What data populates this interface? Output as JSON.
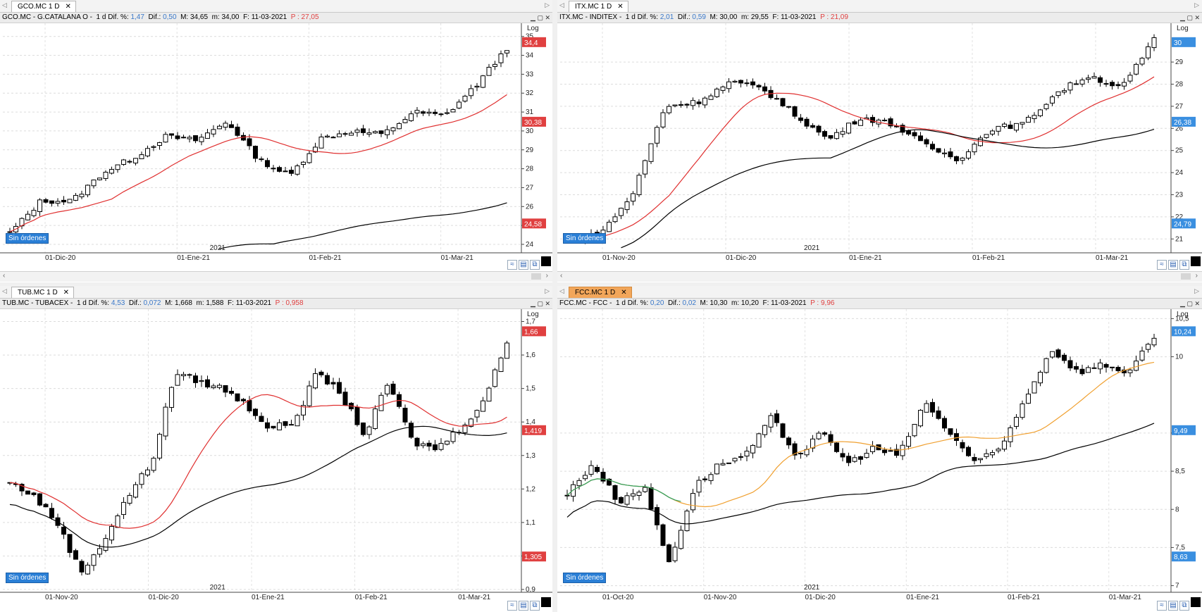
{
  "panels": [
    {
      "id": "gco",
      "tab": "GCO.MC 1 D",
      "active": false,
      "header": {
        "ticker": "GCO.MC - G.CATALANA O -",
        "tf": "1 d",
        "dif_pct_label": "Dif. %:",
        "dif_pct": "1,47",
        "dif_label": "Dif.:",
        "dif": "0,50",
        "max": "M: 34,65",
        "min": "m: 34,00",
        "date": "F: 11-03-2021",
        "p": "P : 27,05"
      },
      "badge": "Sin órdenes",
      "log": "Log",
      "year_label": "2021",
      "chart_data": {
        "type": "candlestick",
        "x_ticks": [
          "01-Dic-20",
          "01-Ene-21",
          "01-Feb-21",
          "01-Mar-21"
        ],
        "y_ticks": [
          "24",
          "25",
          "26",
          "27",
          "28",
          "29",
          "30",
          "31",
          "32",
          "33",
          "34",
          "35"
        ],
        "ylim": [
          23.7,
          35.4
        ],
        "price_labels": [
          {
            "value": "34,4",
            "color": "#e04040"
          },
          {
            "value": "30,38",
            "color": "#e04040"
          },
          {
            "value": "24,58",
            "color": "#e04040"
          }
        ],
        "series": [
          {
            "color": "#e03030",
            "start": 23.3,
            "mid": 28.9,
            "end": 30.38
          },
          {
            "color": "#000000",
            "start": null,
            "mid": null,
            "end": 24.58
          }
        ],
        "trend_path": [
          24.6,
          26.3,
          26.3,
          27.8,
          28.6,
          29.7,
          29.5,
          30.5,
          28.5,
          27.6,
          29.6,
          30.0,
          29.8,
          31.0,
          30.8,
          32.4,
          34.4
        ]
      }
    },
    {
      "id": "itx",
      "tab": "ITX.MC 1 D",
      "active": false,
      "header": {
        "ticker": "ITX.MC - INDITEX -",
        "tf": "1 d",
        "dif_pct_label": "Dif. %:",
        "dif_pct": "2,01",
        "dif_label": "Dif.:",
        "dif": "0,59",
        "max": "M: 30,00",
        "min": "m: 29,55",
        "date": "F: 11-03-2021",
        "p": "P : 21,09"
      },
      "badge": "Sin órdenes",
      "log": "Log",
      "year_label": "2021",
      "chart_data": {
        "type": "candlestick",
        "x_ticks": [
          "01-Nov-20",
          "01-Dic-20",
          "01-Ene-21",
          "01-Feb-21",
          "01-Mar-21"
        ],
        "y_ticks": [
          "21",
          "22",
          "23",
          "24",
          "25",
          "26",
          "27",
          "28",
          "29"
        ],
        "ylim": [
          20.5,
          30.5
        ],
        "price_labels": [
          {
            "value": "30",
            "color": "#3a8fe0"
          },
          {
            "value": "26,38",
            "color": "#3a8fe0"
          },
          {
            "value": "24,79",
            "color": "#3a8fe0"
          }
        ],
        "series": [
          {
            "color": "#e03030"
          },
          {
            "color": "#000000"
          }
        ],
        "trend_path": [
          21.0,
          21.2,
          23.0,
          27.0,
          27.2,
          28.1,
          27.8,
          26.6,
          25.5,
          26.5,
          26.2,
          25.2,
          24.6,
          26.0,
          26.2,
          27.6,
          28.4,
          27.8,
          30.0
        ]
      }
    },
    {
      "id": "tub",
      "tab": "TUB.MC 1 D",
      "active": false,
      "header": {
        "ticker": "TUB.MC - TUBACEX -",
        "tf": "1 d",
        "dif_pct_label": "Dif. %:",
        "dif_pct": "4,53",
        "dif_label": "Dif.:",
        "dif": "0,072",
        "max": "M: 1,668",
        "min": "m: 1,588",
        "date": "F: 11-03-2021",
        "p": "P : 0,958"
      },
      "badge": "Sin órdenes",
      "log": "Log",
      "year_label": "2021",
      "chart_data": {
        "type": "candlestick",
        "x_ticks": [
          "01-Nov-20",
          "01-Dic-20",
          "01-Ene-21",
          "01-Feb-21",
          "01-Mar-21"
        ],
        "y_ticks": [
          "0,9",
          "1",
          "1,1",
          "1,2",
          "1,3",
          "1,4",
          "1,5",
          "1,6",
          "1,7"
        ],
        "ylim": [
          0.9,
          1.72
        ],
        "price_labels": [
          {
            "value": "1,66",
            "color": "#e04040"
          },
          {
            "value": "1,419",
            "color": "#e04040"
          },
          {
            "value": "1,305",
            "color": "#e04040"
          }
        ],
        "series": [
          {
            "color": "#e03030"
          },
          {
            "color": "#000000"
          }
        ],
        "trend_path": [
          1.22,
          1.18,
          1.1,
          0.95,
          1.05,
          1.18,
          1.28,
          1.55,
          1.52,
          1.5,
          1.45,
          1.38,
          1.4,
          1.55,
          1.48,
          1.36,
          1.52,
          1.34,
          1.32,
          1.38,
          1.46,
          1.64
        ]
      }
    },
    {
      "id": "fcc",
      "tab": "FCC.MC 1 D",
      "active": true,
      "header": {
        "ticker": "FCC.MC - FCC -",
        "tf": "1 d",
        "dif_pct_label": "Dif. %:",
        "dif_pct": "0,20",
        "dif_label": "Dif.:",
        "dif": "0,02",
        "max": "M: 10,30",
        "min": "m: 10,20",
        "date": "F: 11-03-2021",
        "p": "P : 9,96"
      },
      "badge": "Sin órdenes",
      "log": "Log",
      "year_label": "2021",
      "chart_data": {
        "type": "candlestick",
        "x_ticks": [
          "01-Oct-20",
          "01-Nov-20",
          "01-Dic-20",
          "01-Ene-21",
          "01-Feb-21",
          "01-Mar-21"
        ],
        "y_ticks": [
          "7",
          "7,5",
          "8",
          "8,5",
          "9",
          "10",
          "10,5"
        ],
        "ylim": [
          6.95,
          10.55
        ],
        "price_labels": [
          {
            "value": "10,24",
            "color": "#3a8fe0"
          },
          {
            "value": "9,49",
            "color": "#3a8fe0"
          },
          {
            "value": "8,63",
            "color": "#3a8fe0"
          }
        ],
        "series": [
          {
            "color": "#f0a030"
          },
          {
            "color": "#000000"
          },
          {
            "color": "#30a060"
          }
        ],
        "trend_path": [
          8.2,
          8.6,
          8.1,
          8.3,
          7.3,
          8.3,
          8.6,
          8.7,
          9.2,
          8.7,
          9.0,
          8.6,
          8.8,
          8.7,
          9.4,
          9.0,
          8.6,
          8.8,
          9.5,
          10.1,
          9.8,
          9.9,
          9.8,
          10.24
        ]
      }
    }
  ]
}
